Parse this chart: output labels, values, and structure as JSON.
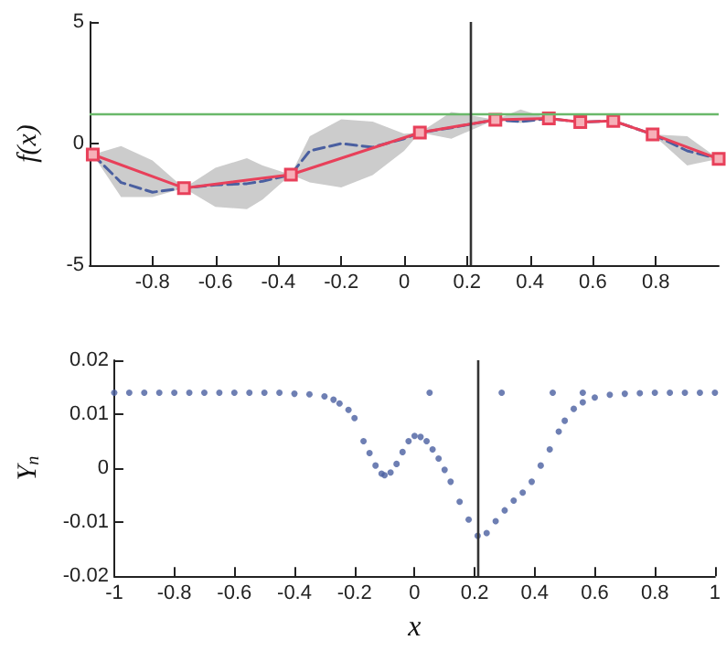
{
  "chart_data": [
    {
      "type": "line",
      "ylabel": "f(x)",
      "xlim": [
        -1,
        1
      ],
      "xticks": [
        -0.8,
        -0.6,
        -0.4,
        -0.2,
        0,
        0.2,
        0.4,
        0.6,
        0.8
      ],
      "ylim": [
        -5,
        5
      ],
      "yticks": [
        -5,
        0,
        5
      ],
      "grid": false,
      "series": [
        {
          "color": "#4a5fa0",
          "line_style": "dashed",
          "marker": "none",
          "x": [
            -0.99,
            -0.9,
            -0.8,
            -0.7,
            -0.6,
            -0.5,
            -0.45,
            -0.36,
            -0.3,
            -0.2,
            -0.1,
            0,
            0.05,
            0.15,
            0.29,
            0.37,
            0.46,
            0.56,
            0.665,
            0.79,
            0.9,
            1.0
          ],
          "values": [
            -0.45,
            -1.6,
            -2.0,
            -1.83,
            -1.7,
            -1.65,
            -1.55,
            -1.28,
            -0.3,
            0.0,
            -0.15,
            0.2,
            0.45,
            0.65,
            0.98,
            0.9,
            1.03,
            0.88,
            0.93,
            0.38,
            -0.3,
            -0.63
          ],
          "lower": [
            -0.45,
            -2.2,
            -2.2,
            -1.83,
            -2.6,
            -2.7,
            -2.3,
            -1.28,
            -1.6,
            -1.8,
            -1.3,
            -0.3,
            0.45,
            0.2,
            0.98,
            0.85,
            1.03,
            0.88,
            0.93,
            0.38,
            -0.9,
            -0.63
          ],
          "upper": [
            -0.45,
            -0.1,
            -0.7,
            -1.83,
            -1.0,
            -0.6,
            -0.9,
            -1.28,
            0.3,
            1.0,
            0.9,
            0.4,
            0.45,
            1.3,
            0.98,
            1.4,
            1.03,
            0.88,
            0.93,
            0.38,
            0.3,
            -0.63
          ]
        },
        {
          "color": "#e8405a",
          "line_style": "solid",
          "marker": "square",
          "x": [
            -0.99,
            -0.7,
            -0.36,
            0.05,
            0.29,
            0.46,
            0.56,
            0.665,
            0.79,
            1.0
          ],
          "values": [
            -0.45,
            -1.83,
            -1.28,
            0.45,
            0.98,
            1.03,
            0.88,
            0.93,
            0.38,
            -0.63
          ]
        }
      ],
      "ref_lines": [
        {
          "axis": "y",
          "value": 1.2,
          "color": "#6ab86a"
        },
        {
          "axis": "x",
          "value": 0.21,
          "color": "#333333"
        }
      ]
    },
    {
      "type": "scatter",
      "xlabel": "x",
      "ylabel": "Υ$_{n}$",
      "xlim": [
        -1,
        1
      ],
      "xticks": [
        -1,
        -0.8,
        -0.6,
        -0.4,
        -0.2,
        0,
        0.2,
        0.4,
        0.6,
        0.8,
        1
      ],
      "ylim": [
        -0.02,
        0.02
      ],
      "yticks": [
        -0.02,
        -0.01,
        0,
        0.01,
        0.02
      ],
      "grid": false,
      "marker": "circle",
      "series": [
        {
          "color": "#4a5fa0",
          "x": [
            -1,
            -0.95,
            -0.9,
            -0.85,
            -0.8,
            -0.75,
            -0.7,
            -0.65,
            -0.6,
            -0.55,
            -0.5,
            -0.45,
            -0.4,
            -0.35,
            -0.3,
            -0.27,
            -0.25,
            -0.22,
            -0.2,
            -0.17,
            -0.15,
            -0.13,
            -0.11,
            -0.1,
            -0.08,
            -0.06,
            -0.04,
            -0.02,
            0,
            0.02,
            0.04,
            0.06,
            0.08,
            0.1,
            0.12,
            0.15,
            0.18,
            0.21,
            0.24,
            0.27,
            0.3,
            0.33,
            0.36,
            0.39,
            0.42,
            0.45,
            0.48,
            0.5,
            0.53,
            0.56,
            0.6,
            0.65,
            0.7,
            0.75,
            0.8,
            0.85,
            0.9,
            0.95,
            1,
            0.05,
            0.29,
            0.46,
            0.56
          ],
          "values": [
            0.014,
            0.014,
            0.014,
            0.014,
            0.014,
            0.014,
            0.014,
            0.014,
            0.014,
            0.014,
            0.014,
            0.014,
            0.0138,
            0.0137,
            0.0133,
            0.0127,
            0.012,
            0.0108,
            0.0093,
            0.005,
            0.0028,
            0.0005,
            -0.001,
            -0.0013,
            -0.0008,
            0.0008,
            0.003,
            0.005,
            0.006,
            0.0058,
            0.005,
            0.0035,
            0.0018,
            -0.0003,
            -0.0025,
            -0.0062,
            -0.0095,
            -0.0125,
            -0.012,
            -0.0098,
            -0.0078,
            -0.006,
            -0.0045,
            -0.0025,
            0.0005,
            0.0035,
            0.0068,
            0.0088,
            0.011,
            0.0122,
            0.0131,
            0.0136,
            0.0138,
            0.0139,
            0.014,
            0.014,
            0.014,
            0.014,
            0.014,
            0.014,
            0.014,
            0.014,
            0.014
          ]
        }
      ],
      "ref_lines": [
        {
          "axis": "x",
          "value": 0.21,
          "color": "#333333"
        }
      ]
    }
  ]
}
